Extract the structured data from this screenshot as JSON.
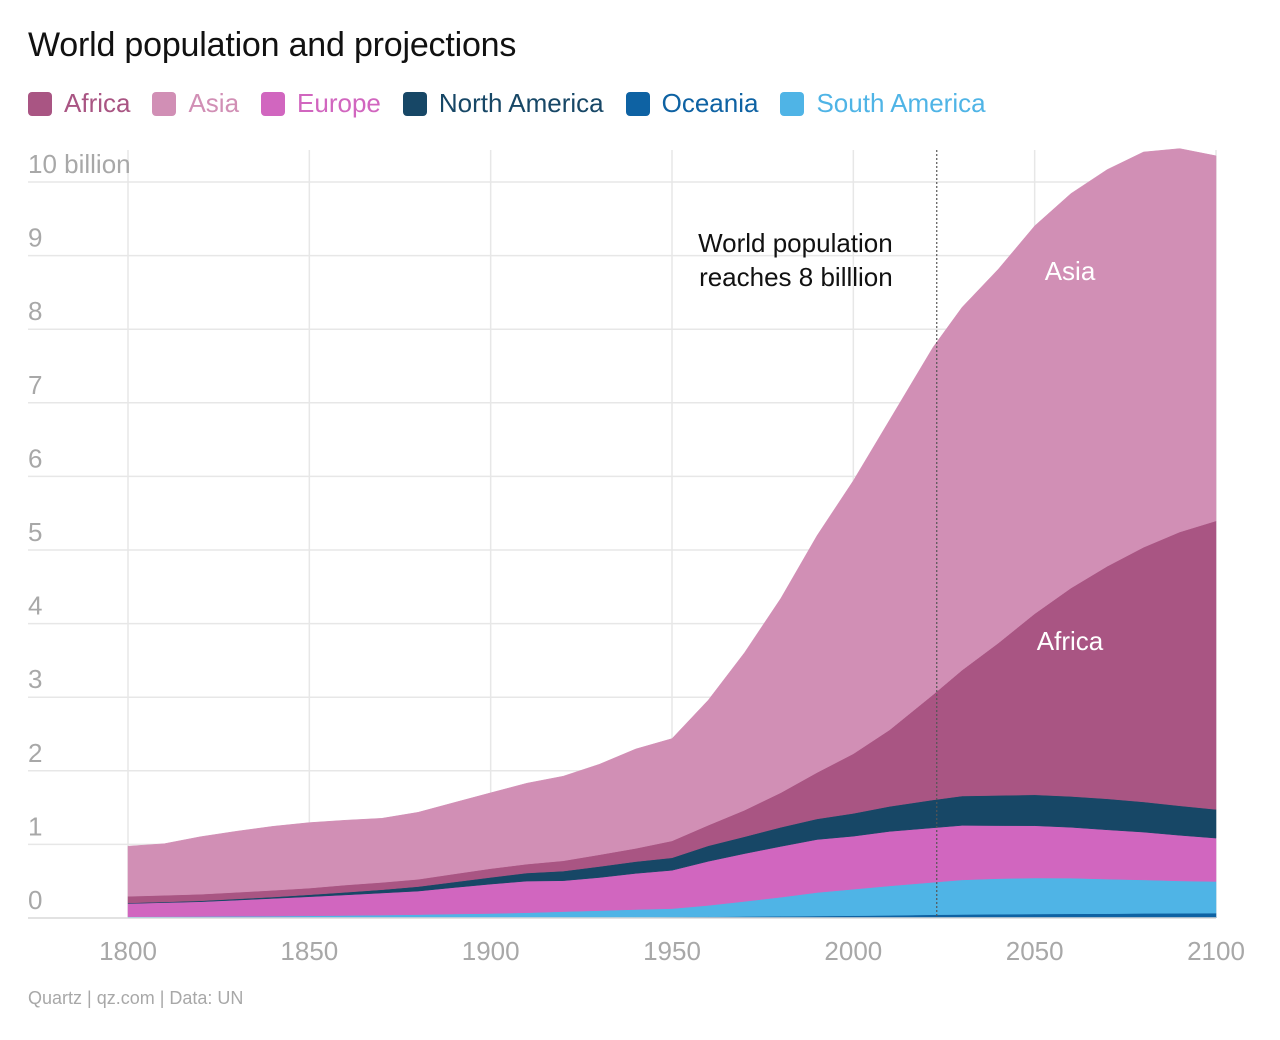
{
  "source_note": "Quartz | qz.com | Data: UN",
  "colors": {
    "Africa": "#a95583",
    "Asia": "#d18fb5",
    "Europe": "#d166bf",
    "North America": "#174766",
    "Oceania": "#0e62a3",
    "South America": "#4fb4e6",
    "grid": "#e7e7e7",
    "tick": "#a8a8a8"
  },
  "chart_data": {
    "type": "area",
    "stacked": true,
    "title": "World population and projections",
    "xlabel": "",
    "ylabel": "",
    "x_range": [
      1800,
      2100
    ],
    "ylim": [
      0,
      10.5
    ],
    "x_ticks": [
      "1800",
      "1850",
      "1900",
      "1950",
      "2000",
      "2050",
      "2100"
    ],
    "y_ticks": [
      "0",
      "1",
      "2",
      "3",
      "4",
      "5",
      "6",
      "7",
      "8",
      "9",
      "10 billion"
    ],
    "grid": true,
    "legend_position": "top-left",
    "x": [
      1800,
      1810,
      1820,
      1830,
      1840,
      1850,
      1860,
      1870,
      1880,
      1890,
      1900,
      1910,
      1920,
      1930,
      1940,
      1950,
      1960,
      1970,
      1980,
      1990,
      2000,
      2010,
      2022,
      2030,
      2040,
      2050,
      2060,
      2070,
      2080,
      2090,
      2100
    ],
    "series": [
      {
        "name": "Oceania",
        "values": [
          0.002,
          0.002,
          0.002,
          0.002,
          0.002,
          0.002,
          0.002,
          0.002,
          0.003,
          0.004,
          0.006,
          0.007,
          0.009,
          0.01,
          0.011,
          0.013,
          0.016,
          0.02,
          0.023,
          0.027,
          0.031,
          0.036,
          0.045,
          0.048,
          0.051,
          0.054,
          0.057,
          0.059,
          0.062,
          0.064,
          0.066
        ]
      },
      {
        "name": "South America",
        "values": [
          0.015,
          0.017,
          0.019,
          0.021,
          0.024,
          0.028,
          0.032,
          0.037,
          0.043,
          0.05,
          0.055,
          0.065,
          0.078,
          0.09,
          0.105,
          0.115,
          0.155,
          0.205,
          0.26,
          0.32,
          0.36,
          0.4,
          0.44,
          0.47,
          0.485,
          0.49,
          0.485,
          0.47,
          0.455,
          0.44,
          0.43
        ]
      },
      {
        "name": "Europe",
        "values": [
          0.18,
          0.19,
          0.2,
          0.22,
          0.24,
          0.26,
          0.28,
          0.3,
          0.32,
          0.36,
          0.4,
          0.43,
          0.42,
          0.45,
          0.49,
          0.52,
          0.6,
          0.65,
          0.69,
          0.72,
          0.72,
          0.74,
          0.74,
          0.74,
          0.72,
          0.71,
          0.69,
          0.67,
          0.65,
          0.62,
          0.59
        ]
      },
      {
        "name": "North America",
        "values": [
          0.008,
          0.01,
          0.013,
          0.016,
          0.02,
          0.026,
          0.035,
          0.045,
          0.06,
          0.075,
          0.09,
          0.11,
          0.13,
          0.15,
          0.16,
          0.17,
          0.21,
          0.23,
          0.26,
          0.28,
          0.31,
          0.34,
          0.38,
          0.4,
          0.41,
          0.42,
          0.42,
          0.42,
          0.41,
          0.4,
          0.39
        ]
      },
      {
        "name": "Africa",
        "values": [
          0.09,
          0.09,
          0.09,
          0.09,
          0.09,
          0.09,
          0.1,
          0.1,
          0.1,
          0.11,
          0.12,
          0.12,
          0.14,
          0.16,
          0.18,
          0.23,
          0.28,
          0.36,
          0.47,
          0.63,
          0.81,
          1.04,
          1.43,
          1.71,
          2.07,
          2.46,
          2.83,
          3.16,
          3.46,
          3.72,
          3.92
        ]
      },
      {
        "name": "Asia",
        "values": [
          0.68,
          0.7,
          0.78,
          0.83,
          0.87,
          0.89,
          0.88,
          0.87,
          0.91,
          0.97,
          1.03,
          1.1,
          1.15,
          1.23,
          1.35,
          1.39,
          1.7,
          2.14,
          2.64,
          3.22,
          3.71,
          4.21,
          4.72,
          4.93,
          5.08,
          5.27,
          5.36,
          5.39,
          5.37,
          5.21,
          4.96
        ]
      }
    ],
    "annotations": {
      "marker_year": 2023,
      "marker_text_line1": "World population",
      "marker_text_line2": "reaches 8 billlion",
      "label_asia": "Asia",
      "label_africa": "Africa"
    }
  }
}
